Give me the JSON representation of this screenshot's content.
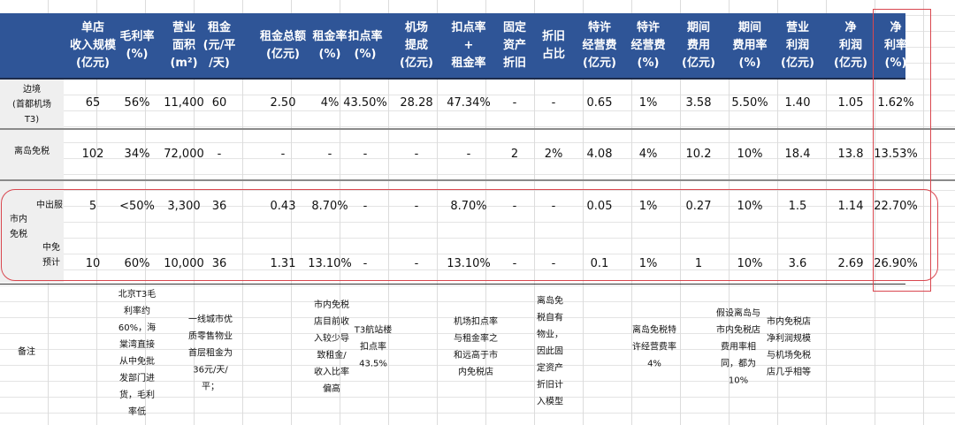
{
  "headers": [
    "单店\n收入规模\n(亿元)",
    "毛利率\n(%)",
    "营业\n面积\n(m²)",
    "租金\n(元/平\n/天)",
    "租金总额\n(亿元)",
    "租金率\n(%)",
    "扣点率\n(%)",
    "机场\n提成\n(亿元)",
    "扣点率\n+\n租金率",
    "固定\n资产\n折旧",
    "折旧\n占比",
    "特许\n经营费\n(亿元)",
    "特许\n经营费\n(%)",
    "期间\n费用\n(亿元)",
    "期间\n费用率\n(%)",
    "营业\n利润\n(亿元)",
    "净\n利润\n(亿元)",
    "净\n利率\n(%)"
  ],
  "rows": [
    {
      "label": "边境\n(首都机场\nT3)",
      "values": [
        "65",
        "56%",
        "11,400",
        "60",
        "2.50",
        "4%",
        "43.50%",
        "28.28",
        "47.34%",
        "-",
        "-",
        "0.65",
        "1%",
        "3.58",
        "5.50%",
        "1.40",
        "1.05",
        "1.62%"
      ]
    },
    {
      "label": "离岛免税",
      "values": [
        "102",
        "34%",
        "72,000",
        "-",
        "-",
        "-",
        "-",
        "-",
        "-",
        "2",
        "2%",
        "4.08",
        "4%",
        "10.2",
        "10%",
        "18.4",
        "13.8",
        "13.53%"
      ]
    },
    {
      "label": "中出服",
      "values": [
        "5",
        "<50%",
        "3,300",
        "36",
        "0.43",
        "8.70%",
        "-",
        "-",
        "8.70%",
        "-",
        "-",
        "0.05",
        "1%",
        "0.27",
        "10%",
        "1.5",
        "1.14",
        "22.70%"
      ]
    },
    {
      "label": "中免\n预计",
      "values": [
        "10",
        "60%",
        "10,000",
        "36",
        "1.31",
        "13.10%",
        "-",
        "-",
        "13.10%",
        "-",
        "-",
        "0.1",
        "1%",
        "1",
        "10%",
        "3.6",
        "2.69",
        "26.90%"
      ]
    }
  ],
  "group_label": "市内\n免税",
  "notes_label": "备注",
  "notes": [
    "北京T3毛\n利率约\n60%，海\n棠湾直接\n从中免批\n发部门进\n货，毛利\n率低",
    "一线城市优\n质零售物业\n首层租金为\n36元/天/\n平；",
    "市内免税\n店目前收\n入较少导\n致租金/\n收入比率\n偏高",
    "T3航站楼\n扣点率\n43.5%",
    "机场扣点率\n与租金率之\n和远高于市\n内免税店",
    "离岛免\n税自有\n物业，\n因此固\n定资产\n折旧计\n入模型",
    "离岛免税特\n许经营费率\n4%",
    "假设离岛与\n市内免税店\n费用率相\n同，都为\n10%",
    "市内免税店\n净利润规模\n与机场免税\n店几乎相等"
  ],
  "colors": {
    "header_bg": "#2f5597",
    "highlight": "#d9474f"
  }
}
